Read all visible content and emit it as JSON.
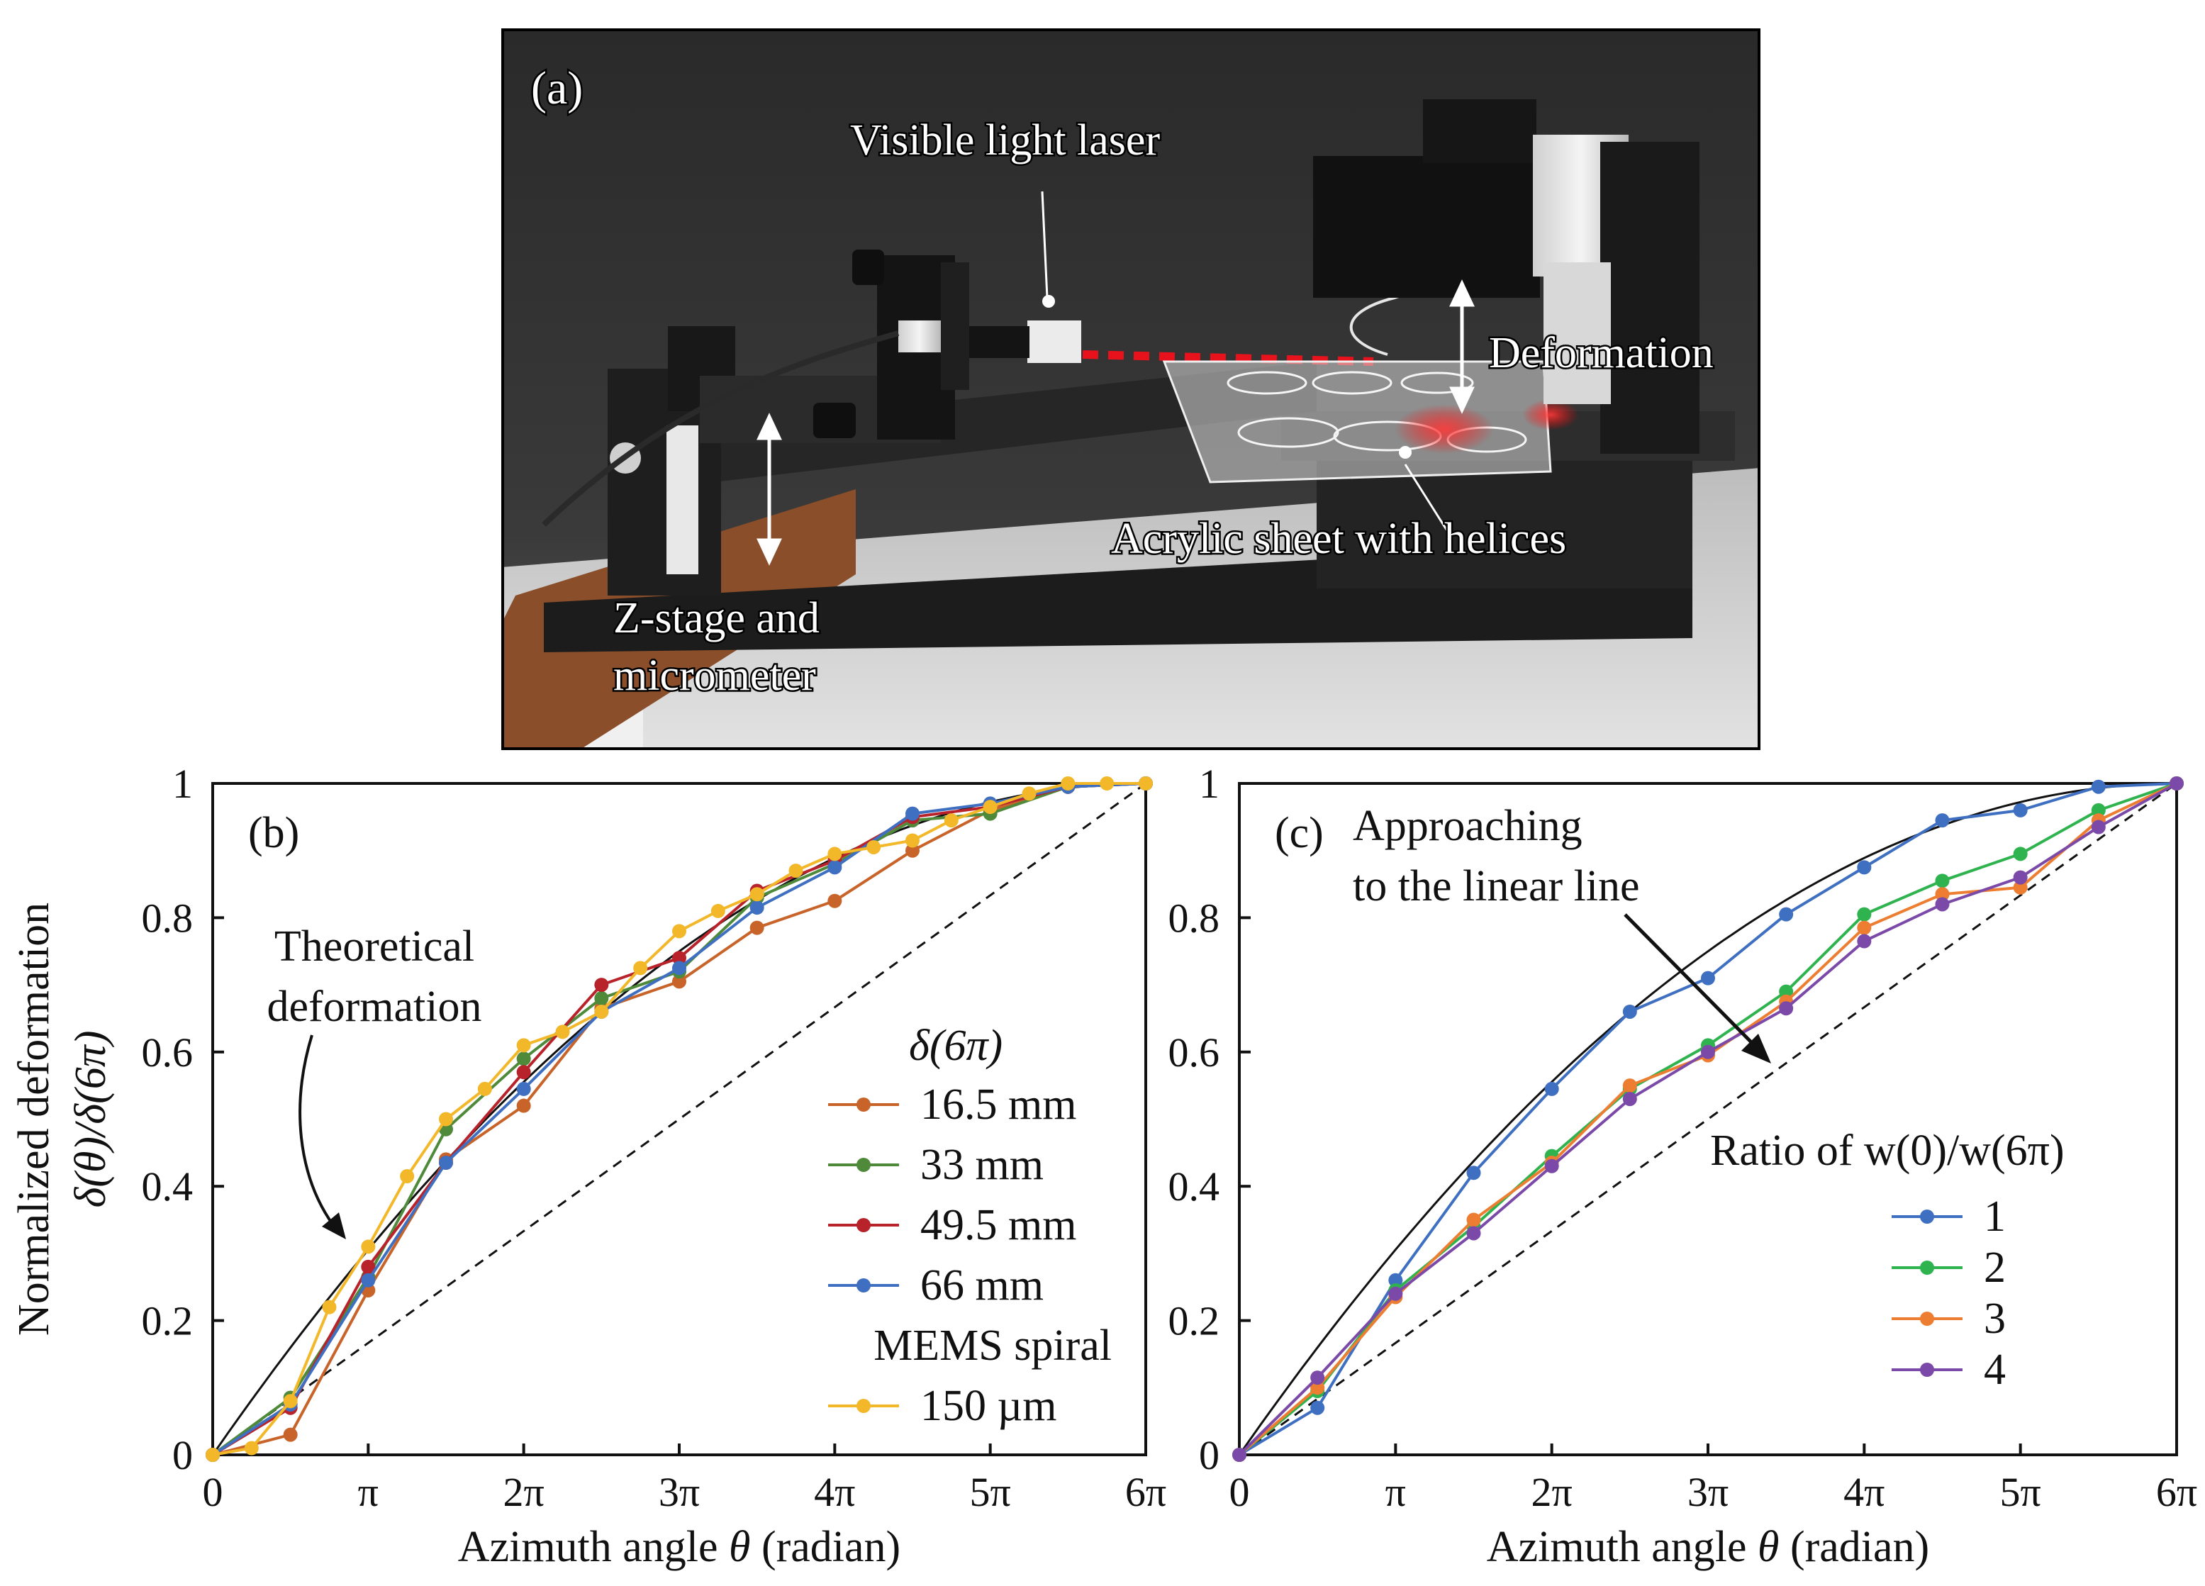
{
  "panel_a": {
    "label": "(a)",
    "annotations": {
      "laser": "Visible light laser",
      "deformation": "Deformation",
      "acrylic": "Acrylic sheet with helices",
      "zstage_line1": "Z-stage and",
      "zstage_line2": "micrometer"
    }
  },
  "chart_data": [
    {
      "type": "line",
      "panel_label": "(b)",
      "xlabel_prefix": "Azimuth angle ",
      "xlabel_var": "θ",
      "xlabel_suffix": " (radian)",
      "ylabel_line1": "Normalized deformation",
      "ylabel_line2": "δ(θ)/δ(6π)",
      "x_tick_labels": [
        "0",
        "π",
        "2π",
        "3π",
        "4π",
        "5π",
        "6π"
      ],
      "y_tick_labels": [
        "0",
        "0.2",
        "0.4",
        "0.6",
        "0.8",
        "1"
      ],
      "xlim": [
        0,
        6
      ],
      "ylim": [
        0,
        1
      ],
      "x_unit": "π",
      "legend_title": "δ(6π)",
      "legend_subtitle": "MEMS spiral",
      "annotation_line1": "Theoretical",
      "annotation_line2": "deformation",
      "theory_curve": "y = 1 - (1 - x/6)^2",
      "series": [
        {
          "name": "16.5 mm",
          "color": "#c8642a",
          "x": [
            0,
            0.5,
            1,
            1.5,
            2,
            2.5,
            3,
            3.5,
            4,
            4.5,
            5,
            5.5,
            6
          ],
          "y": [
            0,
            0.03,
            0.245,
            0.44,
            0.52,
            0.665,
            0.705,
            0.785,
            0.825,
            0.9,
            0.96,
            0.995,
            1.0
          ]
        },
        {
          "name": "33 mm",
          "color": "#4e8a3a",
          "x": [
            0,
            0.5,
            1,
            1.5,
            2,
            2.5,
            3,
            3.5,
            4,
            4.5,
            5,
            5.5,
            6
          ],
          "y": [
            0,
            0.085,
            0.265,
            0.485,
            0.59,
            0.68,
            0.72,
            0.83,
            0.88,
            0.945,
            0.955,
            0.995,
            1.0
          ]
        },
        {
          "name": "49.5 mm",
          "color": "#b8232b",
          "x": [
            0,
            0.5,
            1,
            1.5,
            2,
            2.5,
            3,
            3.5,
            4,
            4.5,
            5,
            5.5,
            6
          ],
          "y": [
            0,
            0.07,
            0.28,
            0.435,
            0.57,
            0.7,
            0.74,
            0.84,
            0.885,
            0.95,
            0.965,
            0.995,
            1.0
          ]
        },
        {
          "name": "66 mm",
          "color": "#3f6fc0",
          "x": [
            0,
            0.5,
            1,
            1.5,
            2,
            2.5,
            3,
            3.5,
            4,
            4.5,
            5,
            5.5,
            6
          ],
          "y": [
            0,
            0.075,
            0.26,
            0.435,
            0.545,
            0.66,
            0.725,
            0.815,
            0.875,
            0.955,
            0.97,
            0.995,
            1.0
          ]
        },
        {
          "name": "150 µm",
          "color": "#f2b82a",
          "x": [
            0,
            0.25,
            0.5,
            0.75,
            1,
            1.25,
            1.5,
            1.75,
            2,
            2.25,
            2.5,
            2.75,
            3,
            3.25,
            3.5,
            3.75,
            4,
            4.25,
            4.5,
            4.75,
            5,
            5.25,
            5.5,
            5.75,
            6
          ],
          "y": [
            0,
            0.01,
            0.08,
            0.22,
            0.31,
            0.415,
            0.5,
            0.545,
            0.61,
            0.63,
            0.66,
            0.725,
            0.78,
            0.81,
            0.835,
            0.87,
            0.895,
            0.905,
            0.915,
            0.945,
            0.965,
            0.985,
            1.0,
            1.0,
            1.0
          ]
        }
      ]
    },
    {
      "type": "line",
      "panel_label": "(c)",
      "xlabel_prefix": "Azimuth angle ",
      "xlabel_var": "θ",
      "xlabel_suffix": " (radian)",
      "x_tick_labels": [
        "0",
        "π",
        "2π",
        "3π",
        "4π",
        "5π",
        "6π"
      ],
      "y_tick_labels": [
        "0",
        "0.2",
        "0.4",
        "0.6",
        "0.8",
        "1"
      ],
      "xlim": [
        0,
        6
      ],
      "ylim": [
        0,
        1
      ],
      "x_unit": "π",
      "legend_title": "Ratio of w(0)/w(6π)",
      "annotation_line1": "Approaching",
      "annotation_line2": "to the linear line",
      "theory_curve": "y = 1 - (1 - x/6)^2",
      "series": [
        {
          "name": "1",
          "color": "#3f6fc0",
          "x": [
            0,
            0.5,
            1,
            1.5,
            2,
            2.5,
            3,
            3.5,
            4,
            4.5,
            5,
            5.5,
            6
          ],
          "y": [
            0,
            0.07,
            0.26,
            0.42,
            0.545,
            0.66,
            0.71,
            0.805,
            0.875,
            0.945,
            0.96,
            0.995,
            1.0
          ]
        },
        {
          "name": "2",
          "color": "#2fb34f",
          "x": [
            0,
            0.5,
            1,
            1.5,
            2,
            2.5,
            3,
            3.5,
            4,
            4.5,
            5,
            5.5,
            6
          ],
          "y": [
            0,
            0.095,
            0.245,
            0.34,
            0.445,
            0.545,
            0.61,
            0.69,
            0.805,
            0.855,
            0.895,
            0.96,
            1.0
          ]
        },
        {
          "name": "3",
          "color": "#ed7d31",
          "x": [
            0,
            0.5,
            1,
            1.5,
            2,
            2.5,
            3,
            3.5,
            4,
            4.5,
            5,
            5.5,
            6
          ],
          "y": [
            0,
            0.1,
            0.235,
            0.35,
            0.435,
            0.55,
            0.595,
            0.675,
            0.785,
            0.835,
            0.845,
            0.945,
            1.0
          ]
        },
        {
          "name": "4",
          "color": "#7b49a8",
          "x": [
            0,
            0.5,
            1,
            1.5,
            2,
            2.5,
            3,
            3.5,
            4,
            4.5,
            5,
            5.5,
            6
          ],
          "y": [
            0,
            0.115,
            0.24,
            0.33,
            0.43,
            0.53,
            0.6,
            0.665,
            0.765,
            0.82,
            0.86,
            0.935,
            1.0
          ]
        }
      ]
    }
  ]
}
